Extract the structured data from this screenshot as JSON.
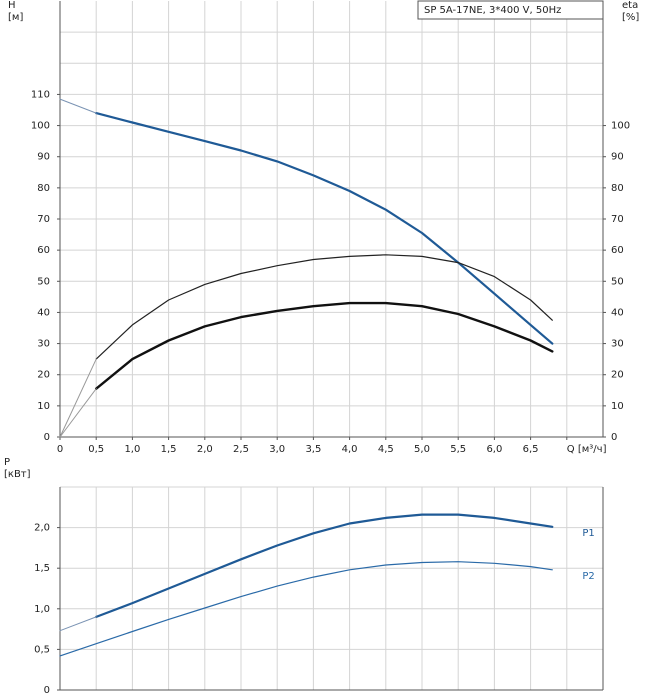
{
  "chart_data": [
    {
      "type": "line",
      "box_text": "SP 5A-17NE, 3*400 V, 50Hz",
      "y_label": [
        "H",
        "[м]"
      ],
      "y2_label": [
        "eta",
        "[%]"
      ],
      "x": [
        0,
        0.5,
        1,
        1.5,
        2,
        2.5,
        3,
        3.5,
        4,
        4.5,
        5,
        5.5,
        6,
        6.5,
        6.8
      ],
      "xlim": [
        0,
        7.5
      ],
      "xticks": [
        0,
        {
          "value": 0.5,
          "label": "0,5"
        },
        {
          "value": 1,
          "label": "1,0"
        },
        {
          "value": 1.5,
          "label": "1,5"
        },
        {
          "value": 2,
          "label": "2,0"
        },
        {
          "value": 2.5,
          "label": "2,5"
        },
        {
          "value": 3,
          "label": "3,0"
        },
        {
          "value": 3.5,
          "label": "3,5"
        },
        {
          "value": 4,
          "label": "4,0"
        },
        {
          "value": 4.5,
          "label": "4,5"
        },
        {
          "value": 5,
          "label": "5,0"
        },
        {
          "value": 5.5,
          "label": "5,5"
        },
        {
          "value": 6,
          "label": "6,0"
        },
        {
          "value": 6.5,
          "label": "6,5"
        },
        {
          "value": 7,
          "label": "Q [м³/ч]"
        }
      ],
      "ylim": [
        0,
        140
      ],
      "yticks": [
        0,
        10,
        20,
        30,
        40,
        50,
        60,
        70,
        80,
        90,
        100,
        110
      ],
      "ygrid": [
        120,
        130
      ],
      "y2lim": [
        0,
        140
      ],
      "y2ticks": [
        0,
        10,
        20,
        30,
        40,
        50,
        60,
        70,
        80,
        90,
        100
      ],
      "series": [
        {
          "color": "#1f5a96",
          "width": 2.2,
          "values": [
            null,
            104,
            101,
            98,
            95,
            92,
            88.5,
            84,
            79,
            73,
            65.5,
            56,
            46,
            36,
            30
          ]
        },
        {
          "color": "#7a93b3",
          "width": 1,
          "values": [
            108.5,
            104,
            null,
            null,
            null,
            null,
            null,
            null,
            null,
            null,
            null,
            null,
            null,
            null,
            null
          ]
        },
        {
          "color": "#222222",
          "width": 1.2,
          "axis": "y2",
          "values": [
            null,
            25,
            36,
            44,
            49,
            52.5,
            55,
            57,
            58,
            58.5,
            58,
            56,
            51.5,
            44,
            37.5
          ]
        },
        {
          "color": "#999999",
          "width": 1,
          "axis": "y2",
          "values": [
            0,
            25,
            null,
            null,
            null,
            null,
            null,
            null,
            null,
            null,
            null,
            null,
            null,
            null,
            null
          ]
        },
        {
          "color": "#111111",
          "width": 2.4,
          "axis": "y2",
          "values": [
            null,
            15.5,
            25,
            31,
            35.5,
            38.5,
            40.5,
            42,
            43,
            43,
            42,
            39.5,
            35.5,
            31,
            27.5
          ]
        },
        {
          "color": "#999999",
          "width": 1,
          "axis": "y2",
          "values": [
            0,
            15.5,
            null,
            null,
            null,
            null,
            null,
            null,
            null,
            null,
            null,
            null,
            null,
            null,
            null
          ]
        }
      ]
    },
    {
      "type": "line",
      "y_label": [
        "P",
        "[кВт]"
      ],
      "x": [
        0,
        0.5,
        1,
        1.5,
        2,
        2.5,
        3,
        3.5,
        4,
        4.5,
        5,
        5.5,
        6,
        6.5,
        6.8
      ],
      "xlim": [
        0,
        7.5
      ],
      "xgrid": [
        0,
        0.5,
        1,
        1.5,
        2,
        2.5,
        3,
        3.5,
        4,
        4.5,
        5,
        5.5,
        6,
        6.5,
        7
      ],
      "ylim": [
        0,
        2.5
      ],
      "yticks": [
        0,
        {
          "value": 0.5,
          "label": "0,5"
        },
        {
          "value": 1,
          "label": "1,0"
        },
        {
          "value": 1.5,
          "label": "1,5"
        },
        {
          "value": 2,
          "label": "2,0"
        }
      ],
      "ygrid": [
        2.5
      ],
      "series": [
        {
          "name": "P1",
          "color": "#1f5a96",
          "width": 2.2,
          "values": [
            null,
            0.9,
            1.07,
            1.25,
            1.43,
            1.61,
            1.78,
            1.93,
            2.05,
            2.12,
            2.16,
            2.16,
            2.12,
            2.05,
            2.01
          ]
        },
        {
          "color": "#7a93b3",
          "width": 1,
          "values": [
            0.73,
            0.9,
            null,
            null,
            null,
            null,
            null,
            null,
            null,
            null,
            null,
            null,
            null,
            null,
            null
          ]
        },
        {
          "name": "P2",
          "color": "#2a6aa8",
          "width": 1.2,
          "values": [
            0.42,
            0.57,
            0.72,
            0.87,
            1.01,
            1.15,
            1.28,
            1.39,
            1.48,
            1.54,
            1.57,
            1.58,
            1.56,
            1.52,
            1.48
          ]
        }
      ]
    }
  ]
}
